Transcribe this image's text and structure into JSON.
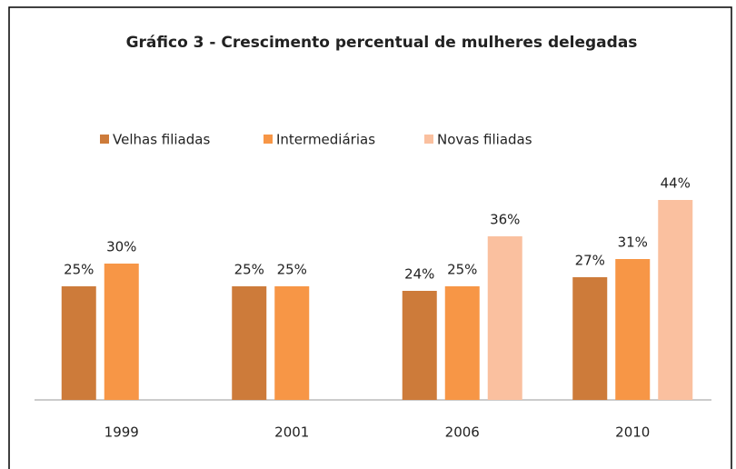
{
  "chart_data": {
    "type": "bar",
    "title": "Gráfico 3 - Crescimento percentual de mulheres delegadas",
    "categories": [
      "1999",
      "2001",
      "2006",
      "2010"
    ],
    "series": [
      {
        "name": "Velhas filiadas",
        "color": "#cd7b3a",
        "values": [
          25,
          25,
          24,
          27
        ],
        "value_labels": [
          "25%",
          "25%",
          "24%",
          "27%"
        ]
      },
      {
        "name": "Intermediárias",
        "color": "#f79646",
        "values": [
          30,
          25,
          25,
          31
        ],
        "value_labels": [
          "30%",
          "25%",
          "25%",
          "31%"
        ]
      },
      {
        "name": "Novas filiadas",
        "color": "#fac09f",
        "values": [
          null,
          null,
          36,
          44
        ],
        "value_labels": [
          null,
          null,
          "36%",
          "44%"
        ]
      }
    ],
    "ylim": [
      0,
      50
    ],
    "legend": "top"
  }
}
